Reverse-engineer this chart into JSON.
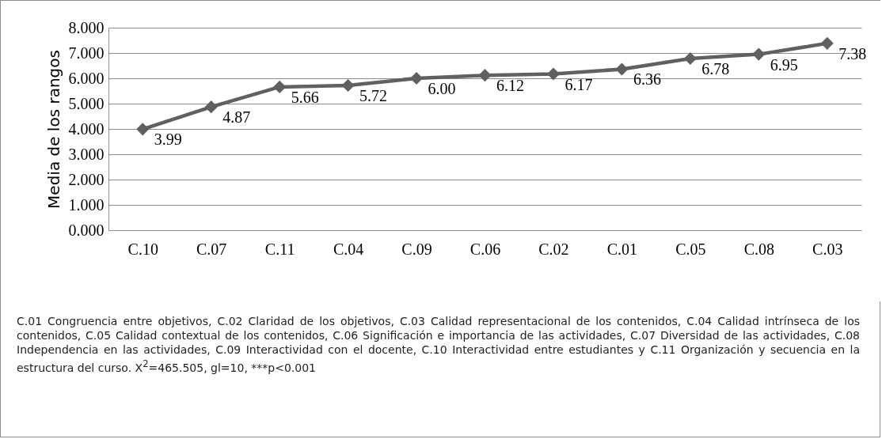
{
  "chart_data": {
    "type": "line",
    "ylabel": "Media de los rangos",
    "categories": [
      "C.10",
      "C.07",
      "C.11",
      "C.04",
      "C.09",
      "C.06",
      "C.02",
      "C.01",
      "C.05",
      "C.08",
      "C.03"
    ],
    "series": [
      {
        "color": "#606060",
        "values": [
          3.99,
          4.87,
          5.66,
          5.72,
          6.0,
          6.12,
          6.17,
          6.36,
          6.78,
          6.95,
          7.38
        ]
      }
    ],
    "value_labels": [
      "3.99",
      "4.87",
      "5.66",
      "5.72",
      "6.00",
      "6.12",
      "6.17",
      "6.36",
      "6.78",
      "6.95",
      "7.38"
    ],
    "ylim": [
      0,
      8
    ],
    "yticks": [
      {
        "value": 0,
        "label": "0.000"
      },
      {
        "value": 1,
        "label": "1.000"
      },
      {
        "value": 2,
        "label": "2.000"
      },
      {
        "value": 3,
        "label": "3.000"
      },
      {
        "value": 4,
        "label": "4.000"
      },
      {
        "value": 5,
        "label": "5.000"
      },
      {
        "value": 6,
        "label": "6.000"
      },
      {
        "value": 7,
        "label": "7.000"
      },
      {
        "value": 8,
        "label": "8.000"
      }
    ],
    "grid": "y",
    "marker": "diamond",
    "line_style": "solid",
    "annotations": [
      "C.01 Congruencia entre objetivos, C.02 Claridad de los objetivos, C.03 Calidad representacional de los contenidos, C.04 Calidad intrínseca de los contenidos, C.05 Calidad contextual de los contenidos, C.06 Significación e importancia de las actividades, C.07 Diversidad de las actividades, C.08 Independencia en las actividades, C.09 Interactividad con el docente, C.10 Interactividad entre estudiantes y C.11 Organización y secuencia en la estructura del curso. X$^{2}$=465.505, gl=10, ***p<0.001"
    ]
  }
}
